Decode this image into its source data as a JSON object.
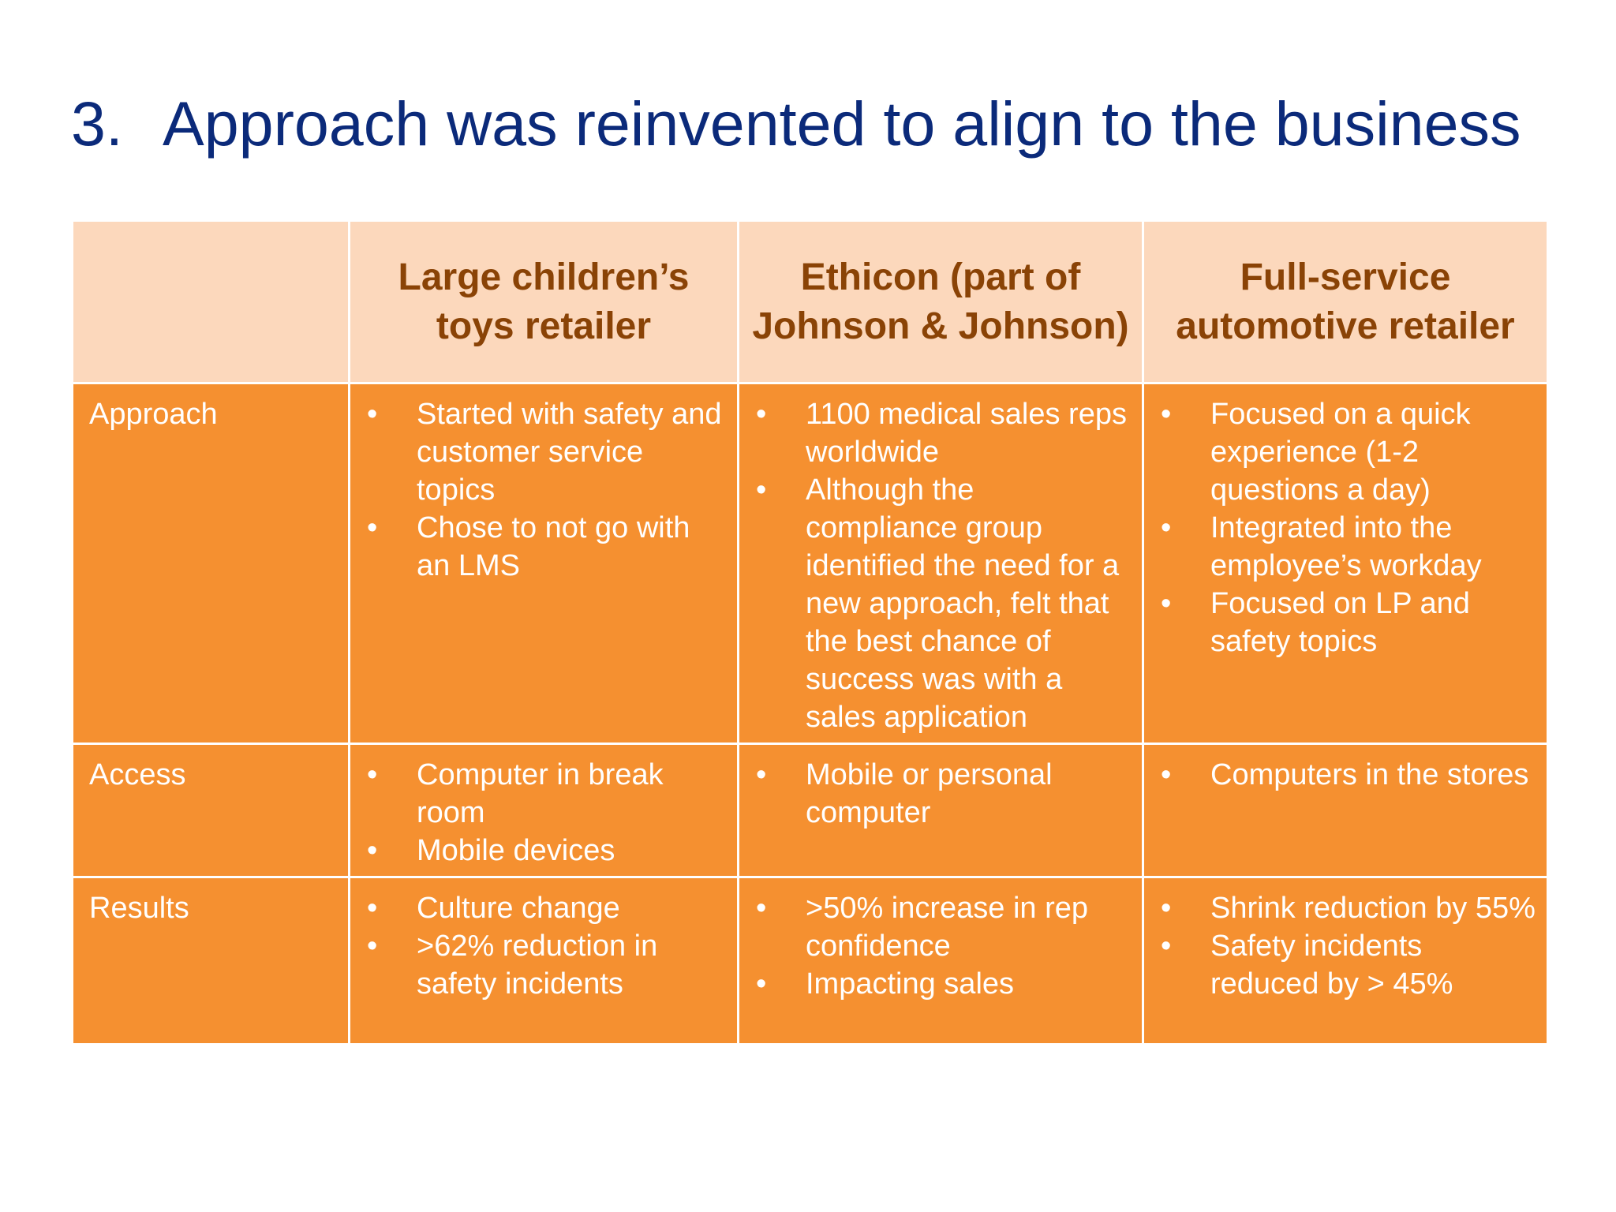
{
  "slide": {
    "number": "3.",
    "title": "Approach was reinvented to align to the business"
  },
  "table": {
    "headers": [
      "",
      "Large children’s toys retailer",
      "Ethicon (part of Johnson & Johnson)",
      "Full-service automotive retailer"
    ],
    "bullet_glyph": "•",
    "rows": [
      {
        "label": "Approach",
        "cells": [
          [
            "Started with safety and customer service topics",
            "Chose to not go with an LMS"
          ],
          [
            "1100 medical sales reps worldwide",
            "Although the compliance group identified  the need for a new approach, felt that the best chance of success was with a sales application"
          ],
          [
            "Focused on a quick experience (1-2 questions a day)",
            "Integrated into the employee’s workday",
            "Focused on LP and safety topics"
          ]
        ]
      },
      {
        "label": "Access",
        "cells": [
          [
            "Computer in break room",
            "Mobile devices"
          ],
          [
            "Mobile or personal computer"
          ],
          [
            "Computers in the stores"
          ]
        ]
      },
      {
        "label": "Results",
        "cells": [
          [
            "Culture change",
            ">62% reduction in safety incidents"
          ],
          [
            ">50% increase in rep confidence",
            "Impacting sales"
          ],
          [
            "Shrink reduction by 55%",
            "Safety incidents reduced by > 45%"
          ]
        ]
      }
    ]
  },
  "colors": {
    "title": "#0b2a7a",
    "header_bg": "#fcd8bc",
    "header_text": "#8a4306",
    "cell_bg": "#f59030",
    "cell_text": "#ffffff"
  }
}
